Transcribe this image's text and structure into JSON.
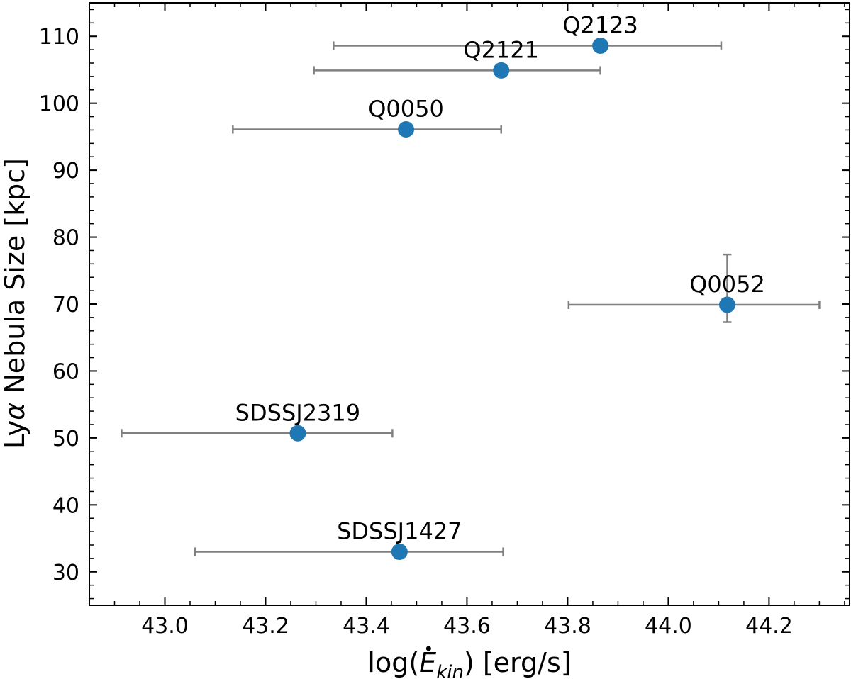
{
  "chart_data": {
    "type": "scatter",
    "title": "",
    "xlabel": "log(Ė_kin) [erg/s]",
    "xlabel_parts": {
      "prefix": "log(",
      "symbol": "E",
      "subscript": "kin",
      "suffix": ") [erg/s]"
    },
    "ylabel": "Lyα Nebula Size [kpc]",
    "ylabel_parts": {
      "prefix": "Ly",
      "greek": "α",
      "suffix": " Nebula Size [kpc]"
    },
    "xlim": [
      42.85,
      44.36
    ],
    "ylim": [
      25,
      115
    ],
    "xticks": [
      43.0,
      43.2,
      43.4,
      43.6,
      43.8,
      44.0,
      44.2
    ],
    "xtick_labels": [
      "43.0",
      "43.2",
      "43.4",
      "43.6",
      "43.8",
      "44.0",
      "44.2"
    ],
    "yticks": [
      30,
      40,
      50,
      60,
      70,
      80,
      90,
      100,
      110
    ],
    "ytick_labels": [
      "30",
      "40",
      "50",
      "60",
      "70",
      "80",
      "90",
      "100",
      "110"
    ],
    "grid": false,
    "legend": "none",
    "marker_color": "#1f77b4",
    "errorbar_color": "#808080",
    "points": [
      {
        "label": "Q2123",
        "x": 43.865,
        "y": 108.6,
        "xerr": [
          43.335,
          44.105
        ]
      },
      {
        "label": "Q2121",
        "x": 43.668,
        "y": 104.9,
        "xerr": [
          43.296,
          43.865
        ]
      },
      {
        "label": "Q0050",
        "x": 43.479,
        "y": 96.1,
        "xerr": [
          43.135,
          43.668
        ]
      },
      {
        "label": "Q0052",
        "x": 44.117,
        "y": 69.9,
        "xerr": [
          43.802,
          44.3
        ],
        "yerr": [
          67.3,
          77.4
        ]
      },
      {
        "label": "SDSSJ2319",
        "x": 43.264,
        "y": 50.7,
        "xerr": [
          42.914,
          43.452
        ]
      },
      {
        "label": "SDSSJ1427",
        "x": 43.466,
        "y": 33.0,
        "xerr": [
          43.06,
          43.672
        ]
      }
    ]
  }
}
